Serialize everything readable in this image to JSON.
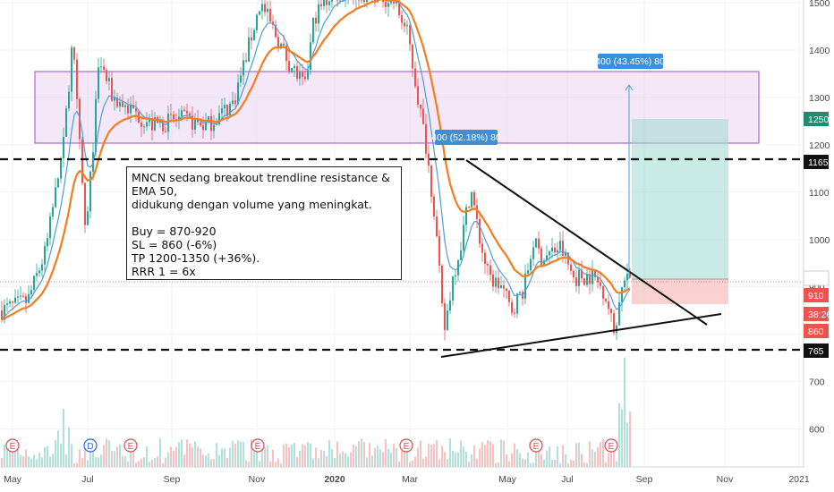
{
  "chart_data": {
    "type": "candlestick",
    "ticker": "MNCN",
    "y_range": [
      550,
      1510
    ],
    "y_ticks": [
      1500,
      1400,
      1300,
      1200,
      1100,
      1000,
      900,
      800,
      700,
      600
    ],
    "x_ticks": [
      "May",
      "Jul",
      "Sep",
      "Nov",
      "2020",
      "Mar",
      "May",
      "Jul",
      "Sep",
      "Nov",
      "2021"
    ],
    "price_labels": [
      {
        "text": "1250",
        "value": 1250,
        "color": "#1e8c6e"
      },
      {
        "text": "1165",
        "value": 1165,
        "color": "#111111"
      },
      {
        "text": "915",
        "value": 915,
        "color": "#ffffff",
        "text_color": "#333333"
      },
      {
        "text": "910",
        "value": 910,
        "color": "#ef5350"
      },
      {
        "text": "38:26",
        "value": 887,
        "color": "#ef5350"
      },
      {
        "text": "860",
        "value": 860,
        "color": "#ef5350"
      },
      {
        "text": "765",
        "value": 765,
        "color": "#111111"
      }
    ],
    "horizontal_levels": [
      1165,
      765
    ],
    "current_price": 915,
    "resistance_zone": [
      1200,
      1350
    ],
    "trendline_resistance": [
      {
        "date": "Apr 2020",
        "price": 1160
      },
      {
        "date": "Oct 2020",
        "price": 860
      }
    ],
    "trendline_support": [
      {
        "date": "Mar 2020",
        "price": 750
      },
      {
        "date": "Oct 2020",
        "price": 880
      }
    ],
    "long_position": {
      "entry": 915,
      "stop": 860,
      "target": 1250
    },
    "callouts": [
      "400 (52.18%) 80",
      "400 (43.45%) 80"
    ],
    "event_markers": [
      "E",
      "D",
      "E",
      "E",
      "E",
      "E",
      "E",
      "E",
      "E"
    ],
    "ema50_color": "#f57c1f",
    "ema20_color": "#4a9fd8"
  },
  "annotation": {
    "line1": "MNCN sedang breakout trendline resistance & EMA 50,",
    "line2": "didukung dengan volume yang meningkat.",
    "buy": "Buy = 870-920",
    "sl": "SL = 860 (-6%)",
    "tp": "TP 1200-1350 (+36%).",
    "rrr": "RRR 1 = 6x"
  }
}
